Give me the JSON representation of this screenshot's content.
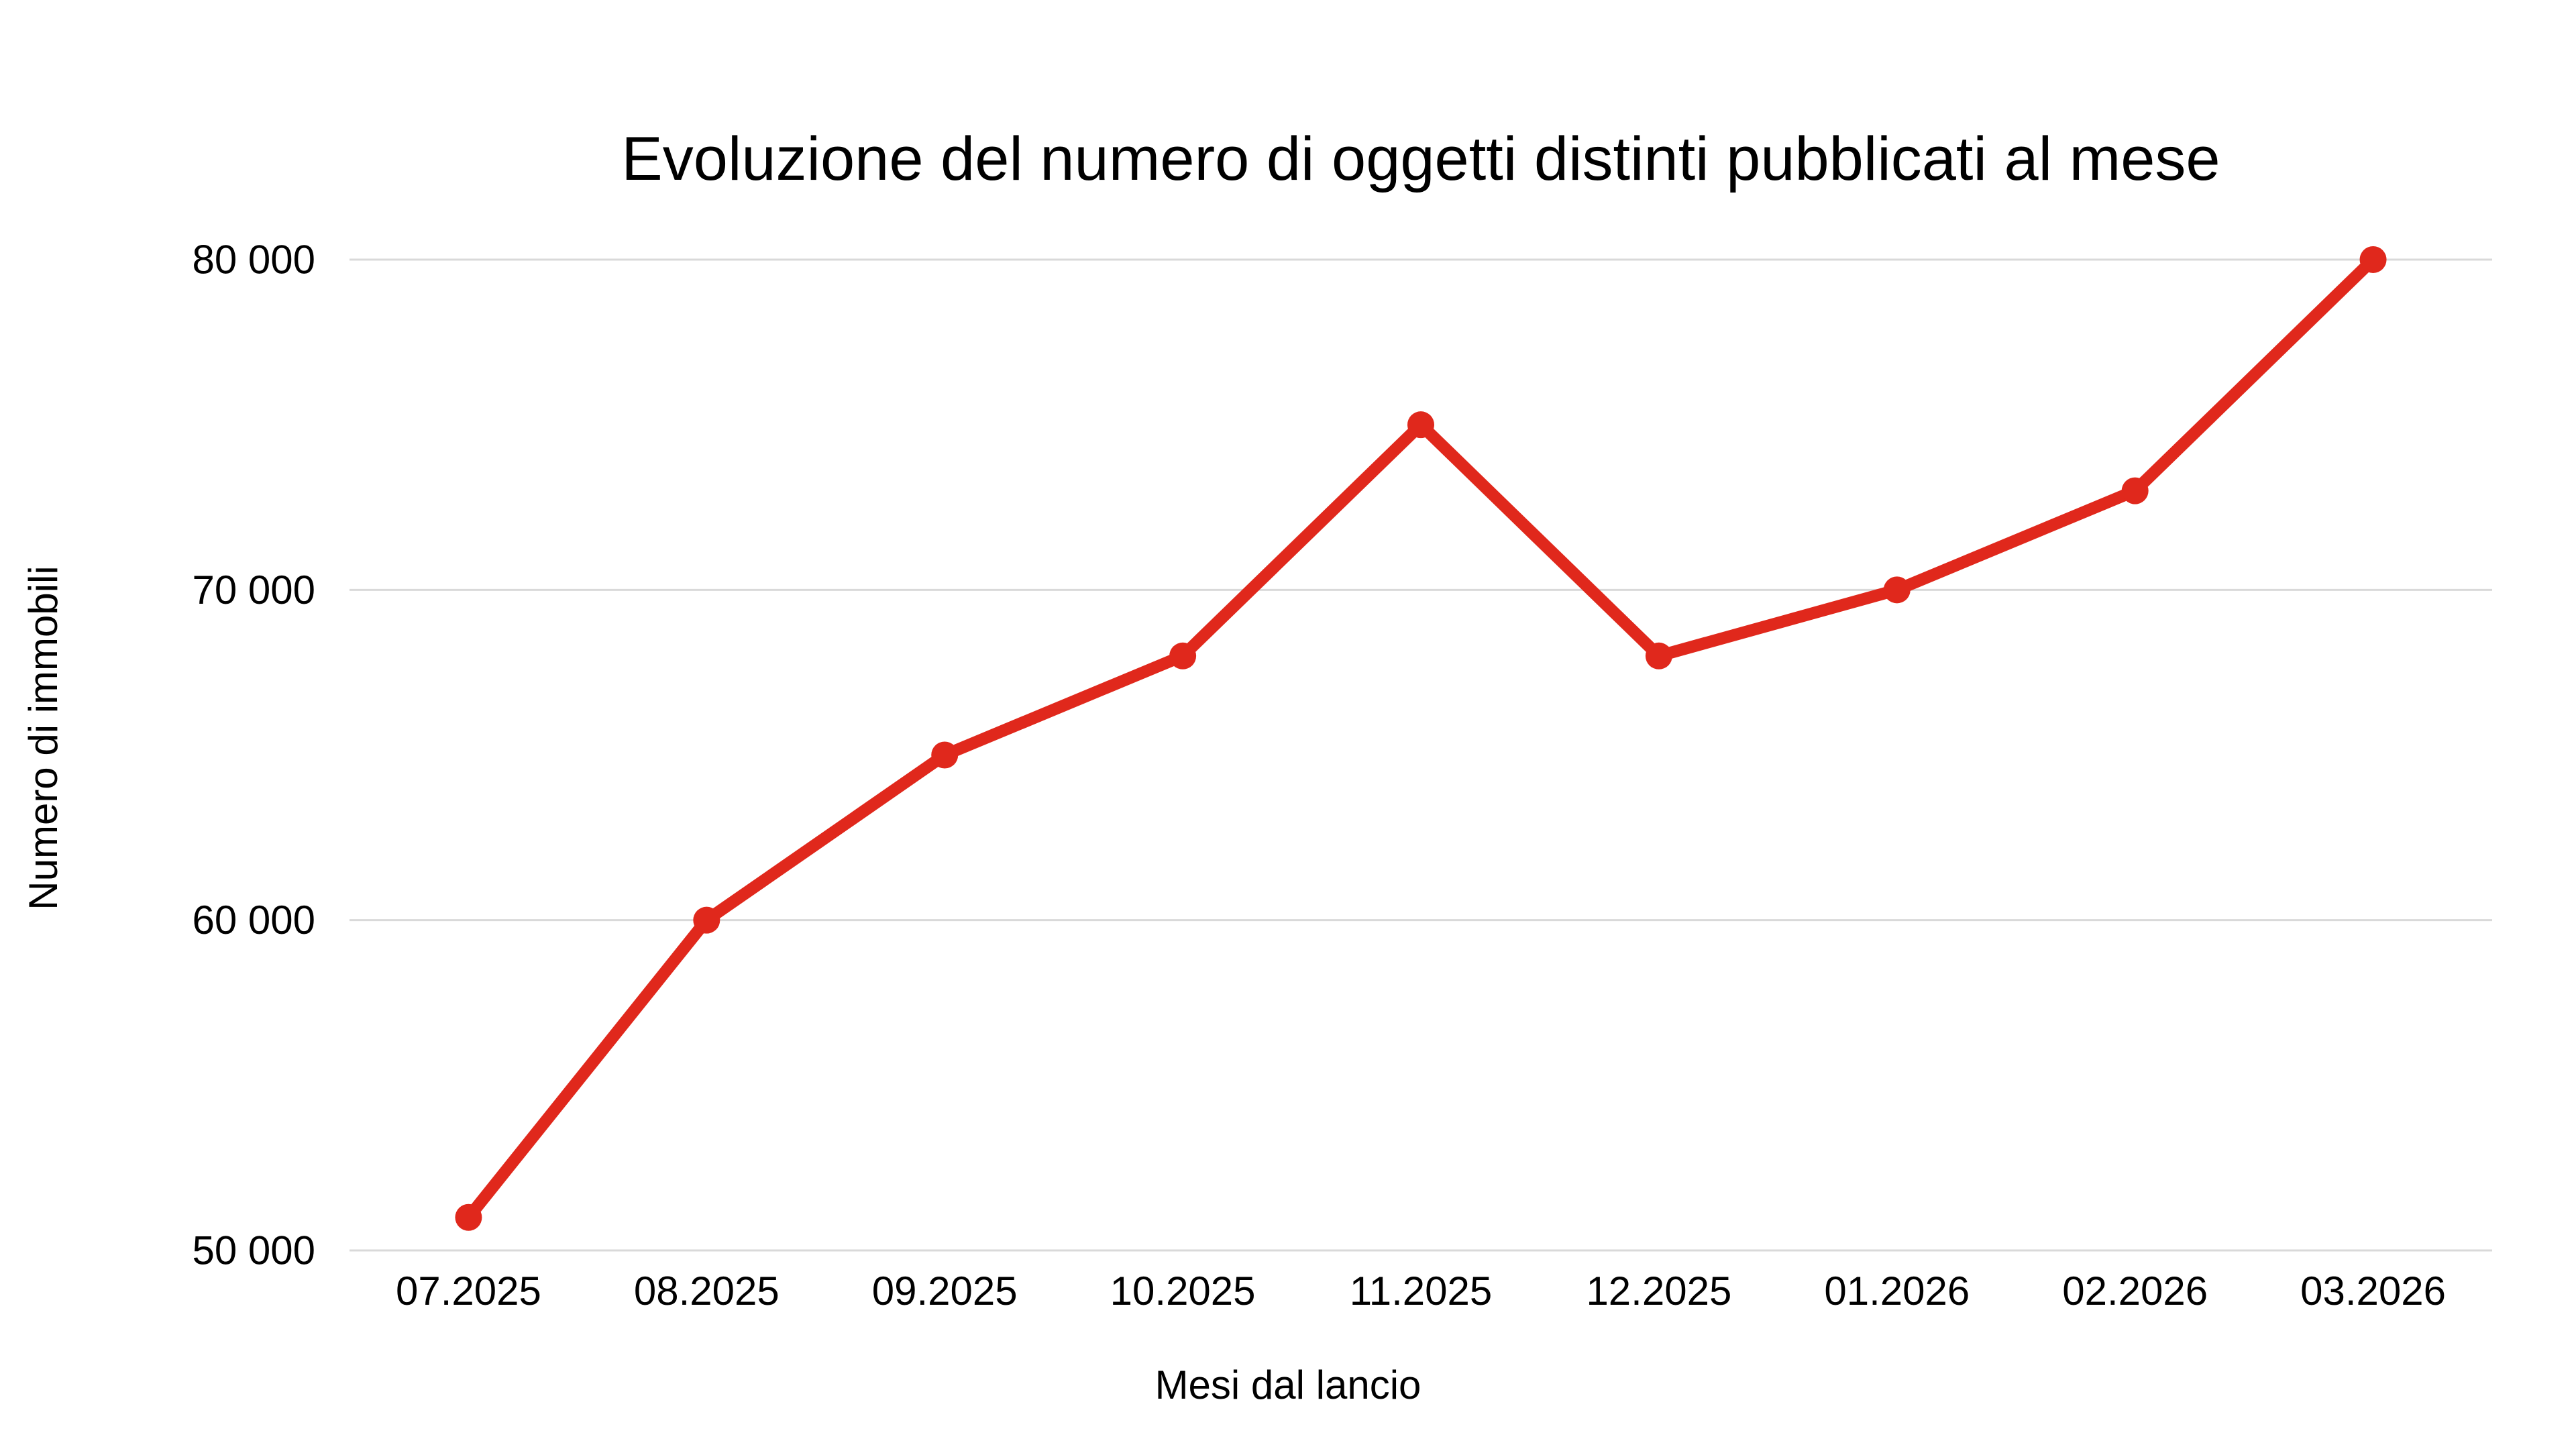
{
  "chart_data": {
    "type": "line",
    "title": "Evoluzione del numero di oggetti distinti pubblicati al mese",
    "xlabel": "Mesi dal lancio",
    "ylabel": "Numero di immobili",
    "categories": [
      "07.2025",
      "08.2025",
      "09.2025",
      "10.2025",
      "11.2025",
      "12.2025",
      "01.2026",
      "02.2026",
      "03.2026"
    ],
    "series": [
      {
        "name": "Numero di immobili",
        "values": [
          51000,
          60000,
          65000,
          68000,
          75000,
          68000,
          70000,
          73000,
          80000
        ]
      }
    ],
    "ylim": [
      50000,
      80000
    ],
    "yticks": [
      50000,
      60000,
      70000,
      80000
    ],
    "ytick_labels": [
      "50 000",
      "60 000",
      "70 000",
      "80 000"
    ],
    "grid": "horizontal-only",
    "legend": "none",
    "colors": {
      "line": "#e0281c",
      "marker": "#e0281c",
      "gridline": "#d9d9d9",
      "text": "#000000",
      "background": "#ffffff"
    }
  }
}
